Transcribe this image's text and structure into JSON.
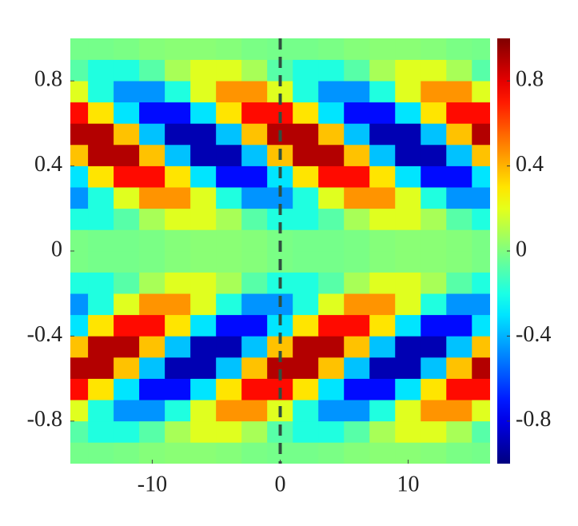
{
  "chart_data": {
    "type": "heatmap",
    "colormap": "jet",
    "clim": [
      -1,
      1
    ],
    "x": [
      -16,
      -14,
      -12,
      -10,
      -8,
      -6,
      -4,
      -2,
      0,
      2,
      4,
      6,
      8,
      10,
      12,
      14,
      16
    ],
    "y": [
      -0.95,
      -0.85,
      -0.75,
      -0.65,
      -0.55,
      -0.45,
      -0.35,
      -0.25,
      -0.15,
      -0.05,
      0.05,
      0.15,
      0.25,
      0.35,
      0.45,
      0.55,
      0.65,
      0.75,
      0.85,
      0.95
    ],
    "z": [
      [
        -0.02,
        -0.02,
        -0.01,
        0.01,
        0.02,
        0.02,
        0.01,
        -0.01,
        -0.02,
        -0.02,
        -0.01,
        0.01,
        0.02,
        0.02,
        0.01,
        -0.01,
        -0.02
      ],
      [
        -0.08,
        -0.19,
        -0.19,
        -0.08,
        0.08,
        0.19,
        0.19,
        0.08,
        -0.08,
        -0.19,
        -0.19,
        -0.08,
        0.08,
        0.19,
        0.19,
        0.08,
        -0.08
      ],
      [
        0.19,
        -0.19,
        -0.46,
        -0.46,
        -0.19,
        0.19,
        0.46,
        0.46,
        0.19,
        -0.19,
        -0.46,
        -0.46,
        -0.19,
        0.19,
        0.46,
        0.46,
        0.19
      ],
      [
        0.73,
        0.3,
        -0.3,
        -0.73,
        -0.73,
        -0.3,
        0.3,
        0.73,
        0.73,
        0.3,
        -0.3,
        -0.73,
        -0.73,
        -0.3,
        0.3,
        0.73,
        0.73
      ],
      [
        0.9,
        0.9,
        0.37,
        -0.37,
        -0.9,
        -0.9,
        -0.37,
        0.37,
        0.9,
        0.9,
        0.37,
        -0.37,
        -0.9,
        -0.9,
        -0.37,
        0.37,
        0.9
      ],
      [
        0.37,
        0.9,
        0.9,
        0.37,
        -0.37,
        -0.9,
        -0.9,
        -0.37,
        0.37,
        0.9,
        0.9,
        0.37,
        -0.37,
        -0.9,
        -0.9,
        -0.37,
        0.37
      ],
      [
        -0.3,
        0.3,
        0.73,
        0.73,
        0.3,
        -0.3,
        -0.73,
        -0.73,
        -0.3,
        0.3,
        0.73,
        0.73,
        0.3,
        -0.3,
        -0.73,
        -0.73,
        -0.3
      ],
      [
        -0.46,
        -0.19,
        0.19,
        0.46,
        0.46,
        0.19,
        -0.19,
        -0.46,
        -0.46,
        -0.19,
        0.19,
        0.46,
        0.46,
        0.19,
        -0.19,
        -0.46,
        -0.46
      ],
      [
        -0.19,
        -0.19,
        -0.08,
        0.08,
        0.19,
        0.19,
        0.08,
        -0.08,
        -0.19,
        -0.19,
        -0.08,
        0.08,
        0.19,
        0.19,
        0.08,
        -0.08,
        -0.19
      ],
      [
        -0.01,
        -0.02,
        -0.02,
        -0.01,
        0.01,
        0.02,
        0.02,
        0.01,
        -0.01,
        -0.02,
        -0.02,
        -0.01,
        0.01,
        0.02,
        0.02,
        0.01,
        -0.01
      ],
      [
        -0.01,
        -0.02,
        -0.02,
        -0.01,
        0.01,
        0.02,
        0.02,
        0.01,
        -0.01,
        -0.02,
        -0.02,
        -0.01,
        0.01,
        0.02,
        0.02,
        0.01,
        -0.01
      ],
      [
        -0.19,
        -0.19,
        -0.08,
        0.08,
        0.19,
        0.19,
        0.08,
        -0.08,
        -0.19,
        -0.19,
        -0.08,
        0.08,
        0.19,
        0.19,
        0.08,
        -0.08,
        -0.19
      ],
      [
        -0.46,
        -0.19,
        0.19,
        0.46,
        0.46,
        0.19,
        -0.19,
        -0.46,
        -0.46,
        -0.19,
        0.19,
        0.46,
        0.46,
        0.19,
        -0.19,
        -0.46,
        -0.46
      ],
      [
        -0.3,
        0.3,
        0.73,
        0.73,
        0.3,
        -0.3,
        -0.73,
        -0.73,
        -0.3,
        0.3,
        0.73,
        0.73,
        0.3,
        -0.3,
        -0.73,
        -0.73,
        -0.3
      ],
      [
        0.37,
        0.9,
        0.9,
        0.37,
        -0.37,
        -0.9,
        -0.9,
        -0.37,
        0.37,
        0.9,
        0.9,
        0.37,
        -0.37,
        -0.9,
        -0.9,
        -0.37,
        0.37
      ],
      [
        0.9,
        0.9,
        0.37,
        -0.37,
        -0.9,
        -0.9,
        -0.37,
        0.37,
        0.9,
        0.9,
        0.37,
        -0.37,
        -0.9,
        -0.9,
        -0.37,
        0.37,
        0.9
      ],
      [
        0.73,
        0.3,
        -0.3,
        -0.73,
        -0.73,
        -0.3,
        0.3,
        0.73,
        0.73,
        0.3,
        -0.3,
        -0.73,
        -0.73,
        -0.3,
        0.3,
        0.73,
        0.73
      ],
      [
        0.19,
        -0.19,
        -0.46,
        -0.46,
        -0.19,
        0.19,
        0.46,
        0.46,
        0.19,
        -0.19,
        -0.46,
        -0.46,
        -0.19,
        0.19,
        0.46,
        0.46,
        0.19
      ],
      [
        -0.08,
        -0.19,
        -0.19,
        -0.08,
        0.08,
        0.19,
        0.19,
        0.08,
        -0.08,
        -0.19,
        -0.19,
        -0.08,
        0.08,
        0.19,
        0.19,
        0.08,
        -0.08
      ],
      [
        -0.02,
        -0.02,
        -0.01,
        0.01,
        0.02,
        0.02,
        0.01,
        -0.01,
        -0.02,
        -0.02,
        -0.01,
        0.01,
        0.02,
        0.02,
        0.01,
        -0.01,
        -0.02
      ]
    ],
    "xlim": [
      -16.4,
      16.4
    ],
    "ylim": [
      -1,
      1
    ],
    "xticks": [
      -10,
      0,
      10
    ],
    "yticks": [
      -0.8,
      -0.4,
      0,
      0.4,
      0.8
    ],
    "colorbar_ticks": [
      -0.8,
      -0.4,
      0,
      0.4,
      0.8
    ],
    "vline_x": 0,
    "vline_color": "#2f4f3f"
  }
}
